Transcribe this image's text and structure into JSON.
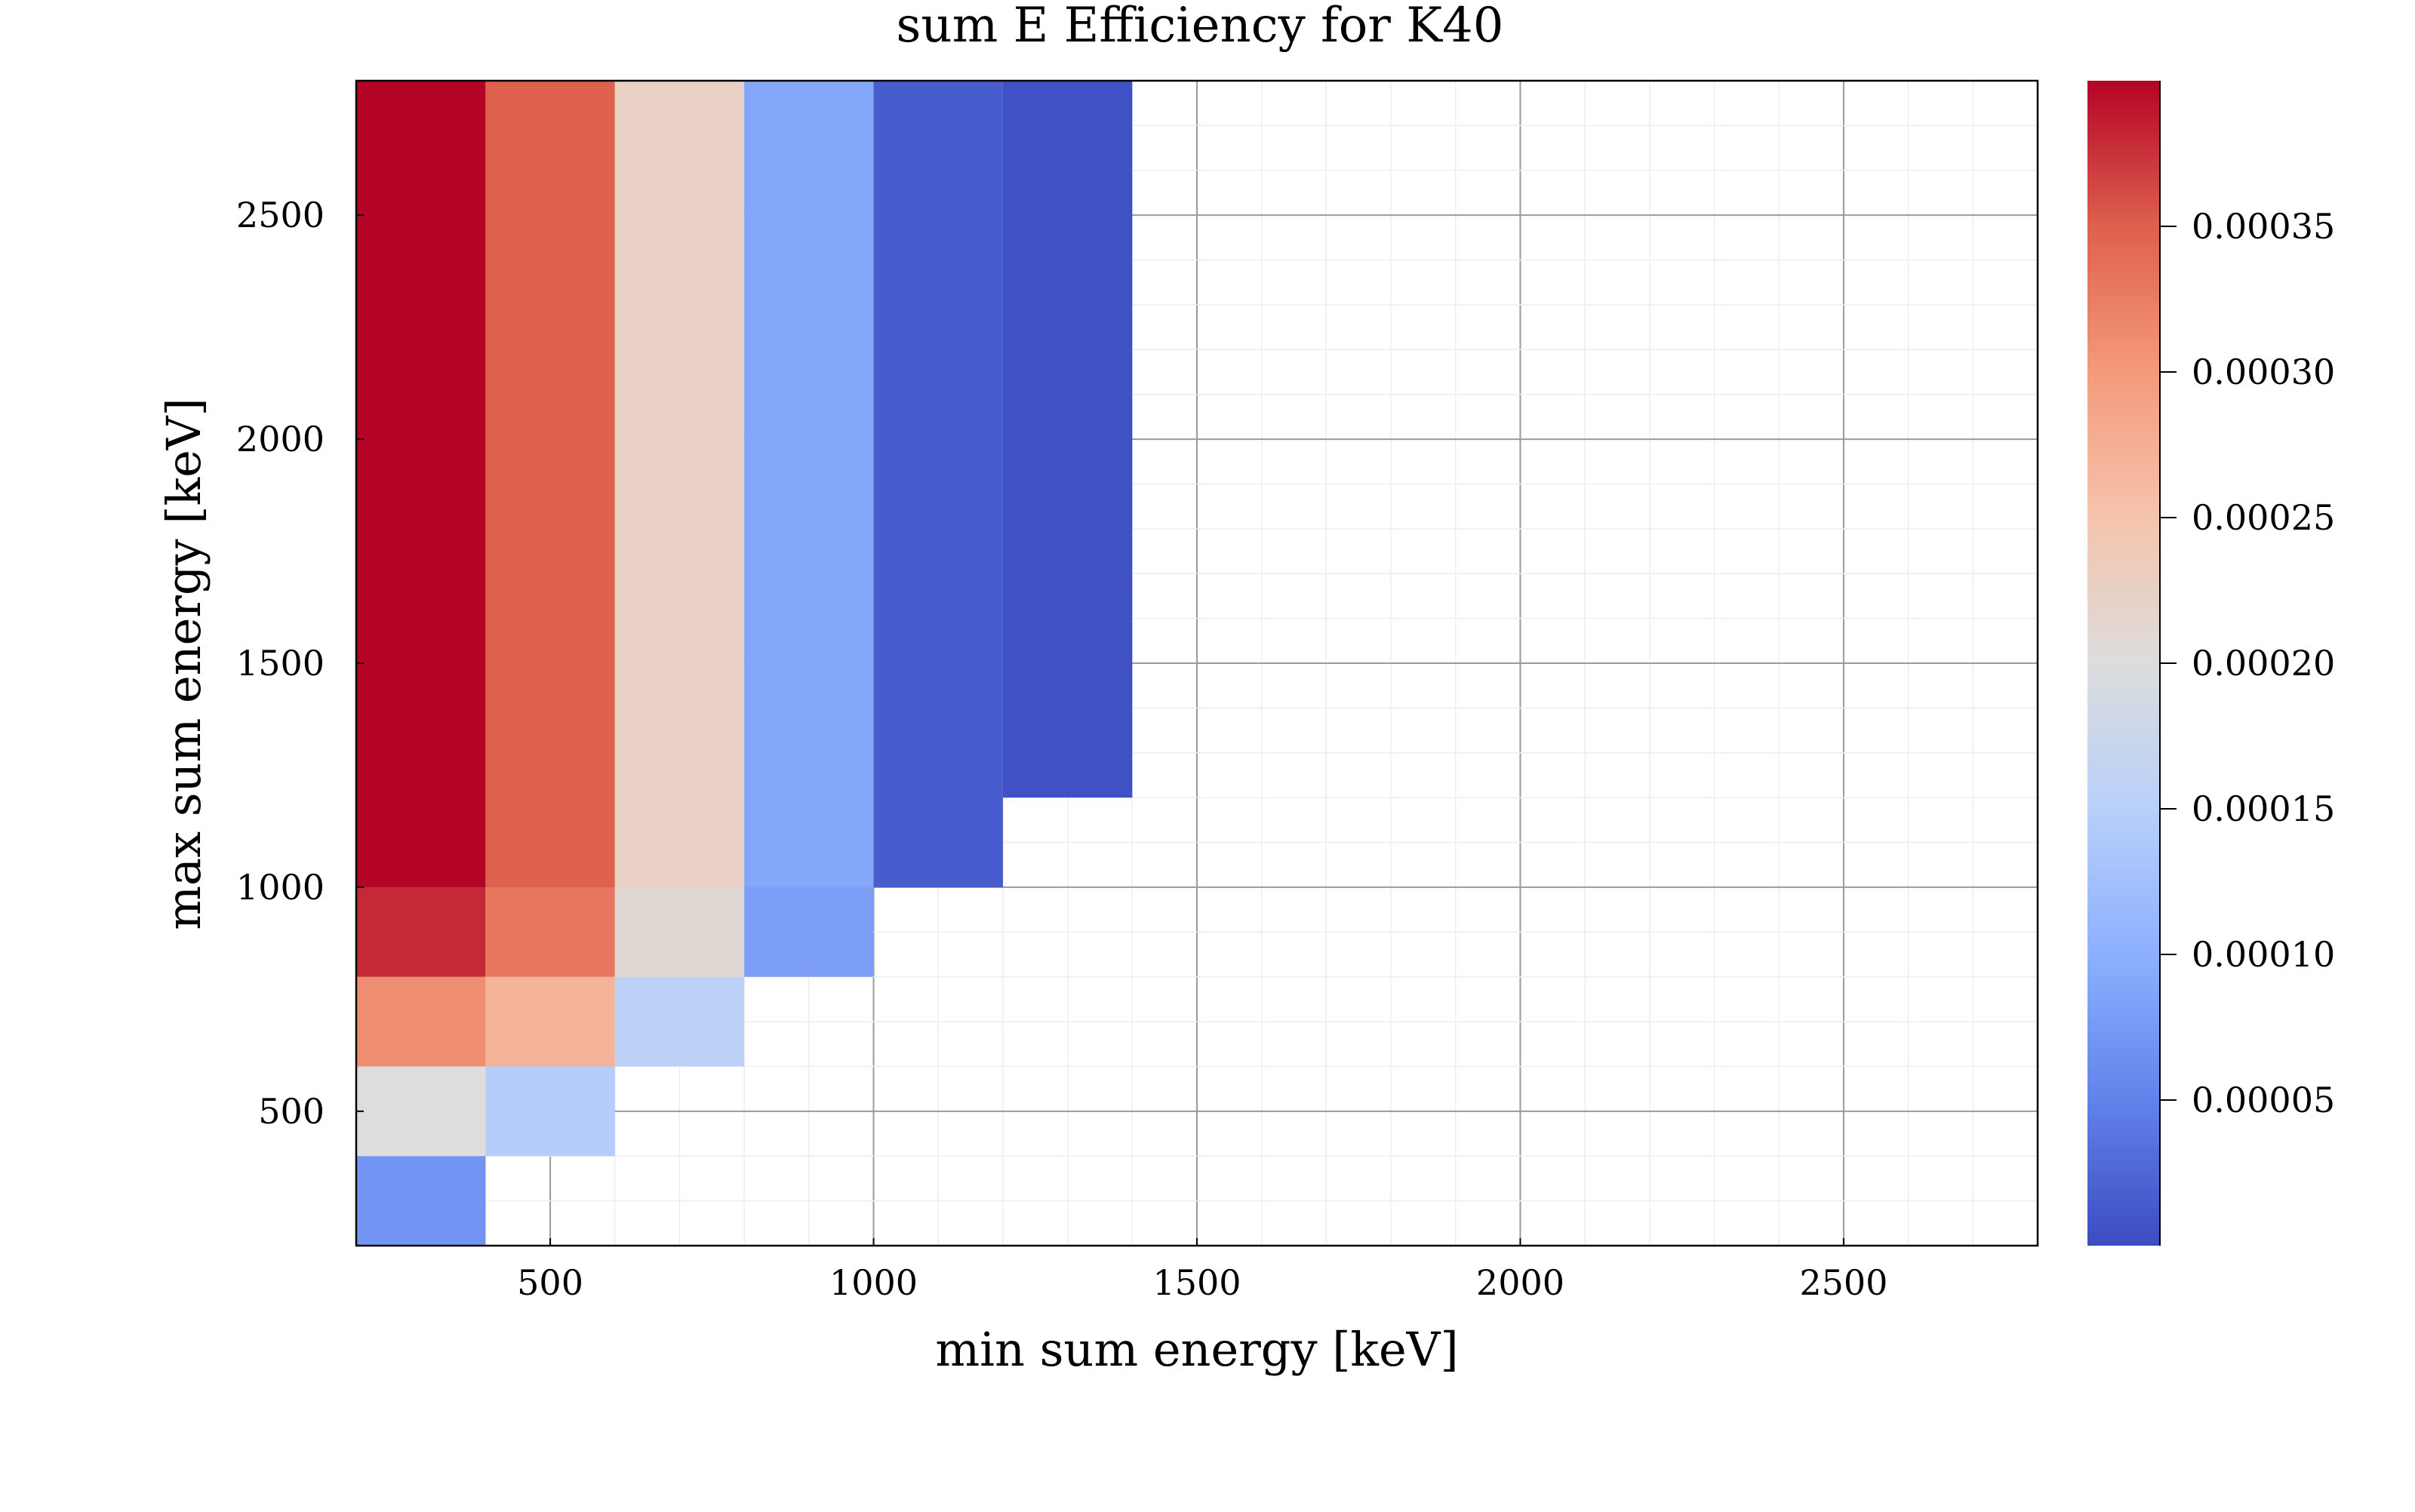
{
  "chart_data": {
    "type": "heatmap",
    "title": "sum E Efficiency for K40",
    "xlabel": "min sum energy [keV]",
    "ylabel": "max sum energy [keV]",
    "xlim": [
      200,
      2800
    ],
    "ylim": [
      200,
      2800
    ],
    "x_ticks": [
      500,
      1000,
      1500,
      2000,
      2500
    ],
    "y_ticks": [
      500,
      1000,
      1500,
      2000,
      2500
    ],
    "grid": true,
    "colormap": "coolwarm",
    "color_range": [
      0.0,
      0.0004
    ],
    "colorbar_ticks": [
      5e-05,
      0.0001,
      0.00015,
      0.0002,
      0.00025,
      0.0003,
      0.00035
    ],
    "colorbar_tick_labels": [
      "0.00005",
      "0.00010",
      "0.00015",
      "0.00020",
      "0.00025",
      "0.00030",
      "0.00035"
    ],
    "cells": [
      {
        "x": [
          200,
          400
        ],
        "y": [
          200,
          400
        ],
        "value": 7e-05
      },
      {
        "x": [
          200,
          400
        ],
        "y": [
          400,
          600
        ],
        "value": 0.0002
      },
      {
        "x": [
          200,
          400
        ],
        "y": [
          600,
          800
        ],
        "value": 0.00031
      },
      {
        "x": [
          200,
          400
        ],
        "y": [
          800,
          1000
        ],
        "value": 0.00038
      },
      {
        "x": [
          200,
          400
        ],
        "y": [
          1000,
          2800
        ],
        "value": 0.0004
      },
      {
        "x": [
          400,
          600
        ],
        "y": [
          400,
          600
        ],
        "value": 0.000145
      },
      {
        "x": [
          400,
          600
        ],
        "y": [
          600,
          800
        ],
        "value": 0.00027
      },
      {
        "x": [
          400,
          600
        ],
        "y": [
          800,
          1000
        ],
        "value": 0.00033
      },
      {
        "x": [
          400,
          600
        ],
        "y": [
          1000,
          2800
        ],
        "value": 0.00035
      },
      {
        "x": [
          600,
          800
        ],
        "y": [
          600,
          800
        ],
        "value": 0.000155
      },
      {
        "x": [
          600,
          800
        ],
        "y": [
          800,
          1000
        ],
        "value": 0.00021
      },
      {
        "x": [
          600,
          800
        ],
        "y": [
          1000,
          2800
        ],
        "value": 0.000225
      },
      {
        "x": [
          800,
          1000
        ],
        "y": [
          800,
          1000
        ],
        "value": 8e-05
      },
      {
        "x": [
          800,
          1000
        ],
        "y": [
          1000,
          2800
        ],
        "value": 9e-05
      },
      {
        "x": [
          1000,
          1200
        ],
        "y": [
          1000,
          2800
        ],
        "value": 1.5e-05
      },
      {
        "x": [
          1200,
          1400
        ],
        "y": [
          1200,
          2800
        ],
        "value": 5e-06
      }
    ]
  }
}
